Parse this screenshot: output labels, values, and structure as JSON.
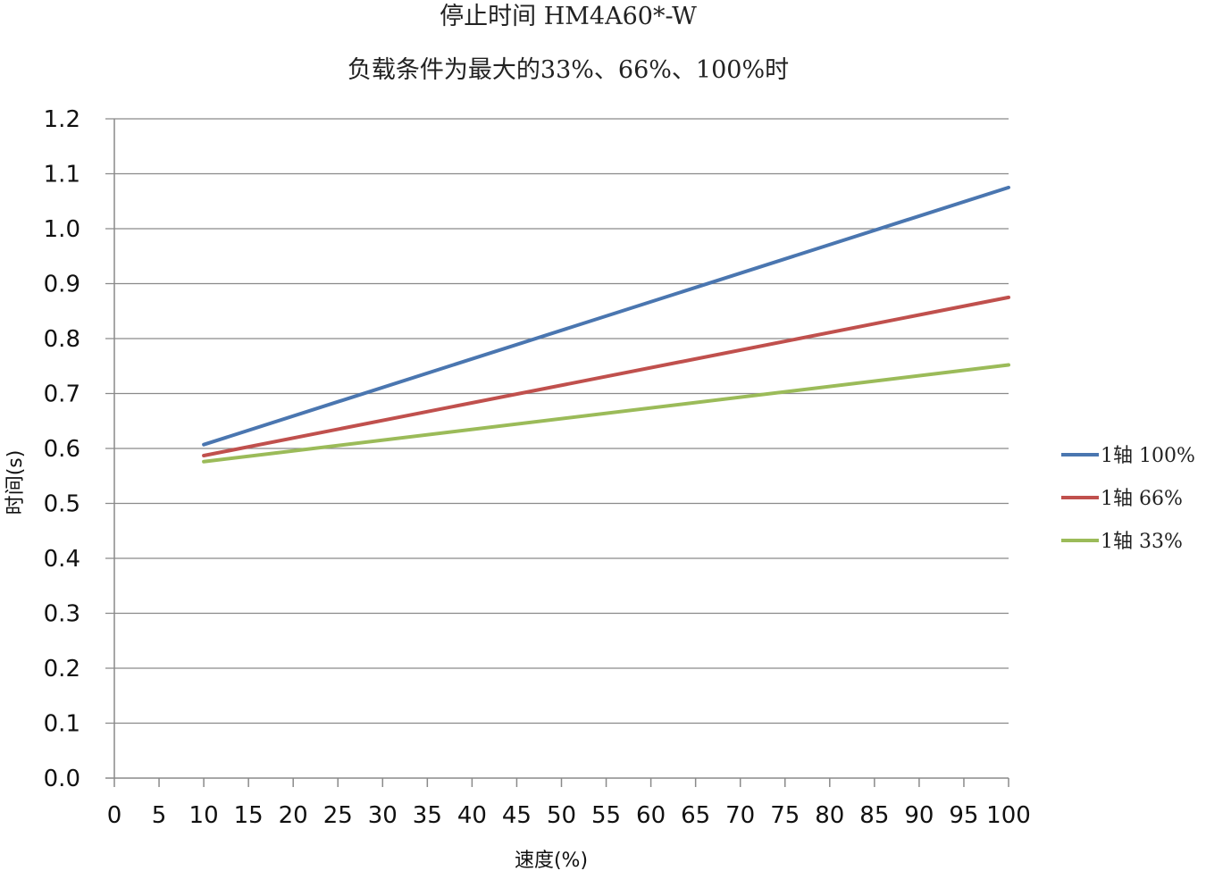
{
  "chart_data": {
    "type": "line",
    "title": "停止时间 HM4A60*-W",
    "subtitle": "负载条件为最大的33%、66%、100%时",
    "xlabel": "速度(%)",
    "ylabel": "时间(s)",
    "xlim": [
      0,
      100
    ],
    "ylim": [
      0,
      1.2
    ],
    "x_ticks": [
      "0",
      "5",
      "10",
      "15",
      "20",
      "25",
      "30",
      "35",
      "40",
      "45",
      "50",
      "55",
      "60",
      "65",
      "70",
      "75",
      "80",
      "85",
      "90",
      "95",
      "100"
    ],
    "y_ticks": [
      "0.0",
      "0.1",
      "0.2",
      "0.3",
      "0.4",
      "0.5",
      "0.6",
      "0.7",
      "0.8",
      "0.9",
      "1.0",
      "1.1",
      "1.2"
    ],
    "grid": true,
    "legend_position": "right",
    "series": [
      {
        "name": "1轴 100%",
        "color": "#4a76b0",
        "x": [
          10,
          100
        ],
        "y": [
          0.607,
          1.075
        ]
      },
      {
        "name": "1轴 66%",
        "color": "#c0504d",
        "x": [
          10,
          100
        ],
        "y": [
          0.587,
          0.875
        ]
      },
      {
        "name": "1轴 33%",
        "color": "#9bbb59",
        "x": [
          10,
          100
        ],
        "y": [
          0.576,
          0.752
        ]
      }
    ]
  }
}
